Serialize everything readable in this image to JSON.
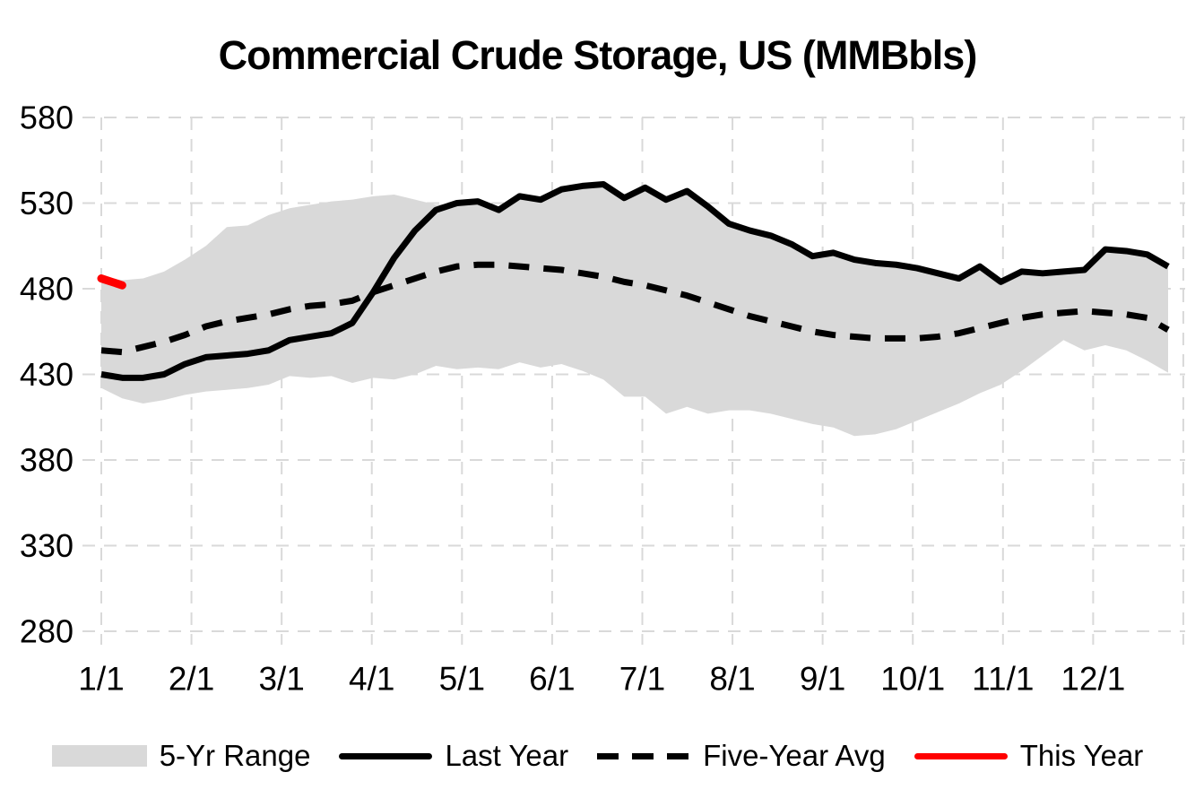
{
  "title": "Commercial Crude Storage, US (MMBbls)",
  "colors": {
    "background": "#ffffff",
    "band": "#d9d9d9",
    "gridline": "#d9d9d9",
    "text": "#000000",
    "last_year": "#000000",
    "five_year_avg": "#000000",
    "this_year": "#ff0000"
  },
  "chart_data": {
    "type": "area+line",
    "title": "Commercial Crude Storage, US (MMBbls)",
    "xlabel": "",
    "ylabel": "",
    "ylim": [
      280,
      580
    ],
    "yticks": [
      580,
      530,
      480,
      430,
      380,
      330,
      280
    ],
    "x_tick_labels": [
      "1/1",
      "2/1",
      "3/1",
      "4/1",
      "5/1",
      "6/1",
      "7/1",
      "8/1",
      "9/1",
      "10/1",
      "11/1",
      "12/1"
    ],
    "x_unit": "weekly samples, day of year",
    "x_days": [
      3,
      10,
      17,
      24,
      31,
      38,
      45,
      52,
      59,
      66,
      73,
      80,
      87,
      94,
      101,
      108,
      115,
      122,
      129,
      136,
      143,
      150,
      157,
      164,
      171,
      178,
      185,
      192,
      199,
      206,
      213,
      220,
      227,
      234,
      241,
      248,
      255,
      262,
      269,
      276,
      283,
      290,
      297,
      304,
      311,
      318,
      325,
      332,
      339,
      346,
      353,
      360
    ],
    "grid": true,
    "legend_position": "bottom",
    "series": [
      {
        "name": "5-Yr Range",
        "type": "band",
        "color": "#d9d9d9",
        "max": [
          487,
          485,
          486,
          490,
          497,
          505,
          516,
          517,
          523,
          527,
          529,
          531,
          532,
          534,
          535,
          532,
          529,
          530,
          531,
          526,
          534,
          532,
          538,
          540,
          541,
          533,
          539,
          532,
          537,
          528,
          518,
          514,
          511,
          506,
          499,
          501,
          497,
          495,
          494,
          492,
          489,
          486,
          493,
          484,
          490,
          489,
          490,
          491,
          503,
          502,
          500,
          493
        ],
        "min": [
          422,
          416,
          413,
          415,
          418,
          420,
          421,
          422,
          424,
          429,
          428,
          429,
          425,
          428,
          427,
          430,
          435,
          433,
          434,
          433,
          437,
          434,
          436,
          432,
          427,
          417,
          417,
          407,
          411,
          407,
          409,
          409,
          407,
          404,
          401,
          399,
          394,
          395,
          398,
          403,
          408,
          413,
          419,
          424,
          432,
          441,
          450,
          444,
          447,
          444,
          438,
          431
        ]
      },
      {
        "name": "Last Year",
        "type": "line",
        "style": "solid",
        "color": "#000000",
        "values": [
          430,
          428,
          428,
          430,
          436,
          440,
          441,
          442,
          444,
          450,
          452,
          454,
          460,
          478,
          498,
          514,
          526,
          530,
          531,
          526,
          534,
          532,
          538,
          540,
          541,
          533,
          539,
          532,
          537,
          528,
          518,
          514,
          511,
          506,
          499,
          501,
          497,
          495,
          494,
          492,
          489,
          486,
          493,
          484,
          490,
          489,
          490,
          491,
          503,
          502,
          500,
          493
        ]
      },
      {
        "name": "Five-Year Avg",
        "type": "line",
        "style": "dashed",
        "color": "#000000",
        "values": [
          444,
          443,
          446,
          449,
          453,
          458,
          461,
          463,
          465,
          468,
          470,
          471,
          473,
          478,
          482,
          486,
          490,
          493,
          494,
          494,
          493,
          492,
          491,
          489,
          487,
          484,
          482,
          479,
          476,
          472,
          468,
          464,
          461,
          458,
          455,
          453,
          452,
          451,
          451,
          451,
          452,
          454,
          457,
          460,
          463,
          465,
          466,
          467,
          466,
          465,
          463,
          456
        ]
      },
      {
        "name": "This Year",
        "type": "line",
        "style": "solid",
        "color": "#ff0000",
        "x_days": [
          3,
          10
        ],
        "values": [
          486,
          482
        ]
      }
    ]
  }
}
